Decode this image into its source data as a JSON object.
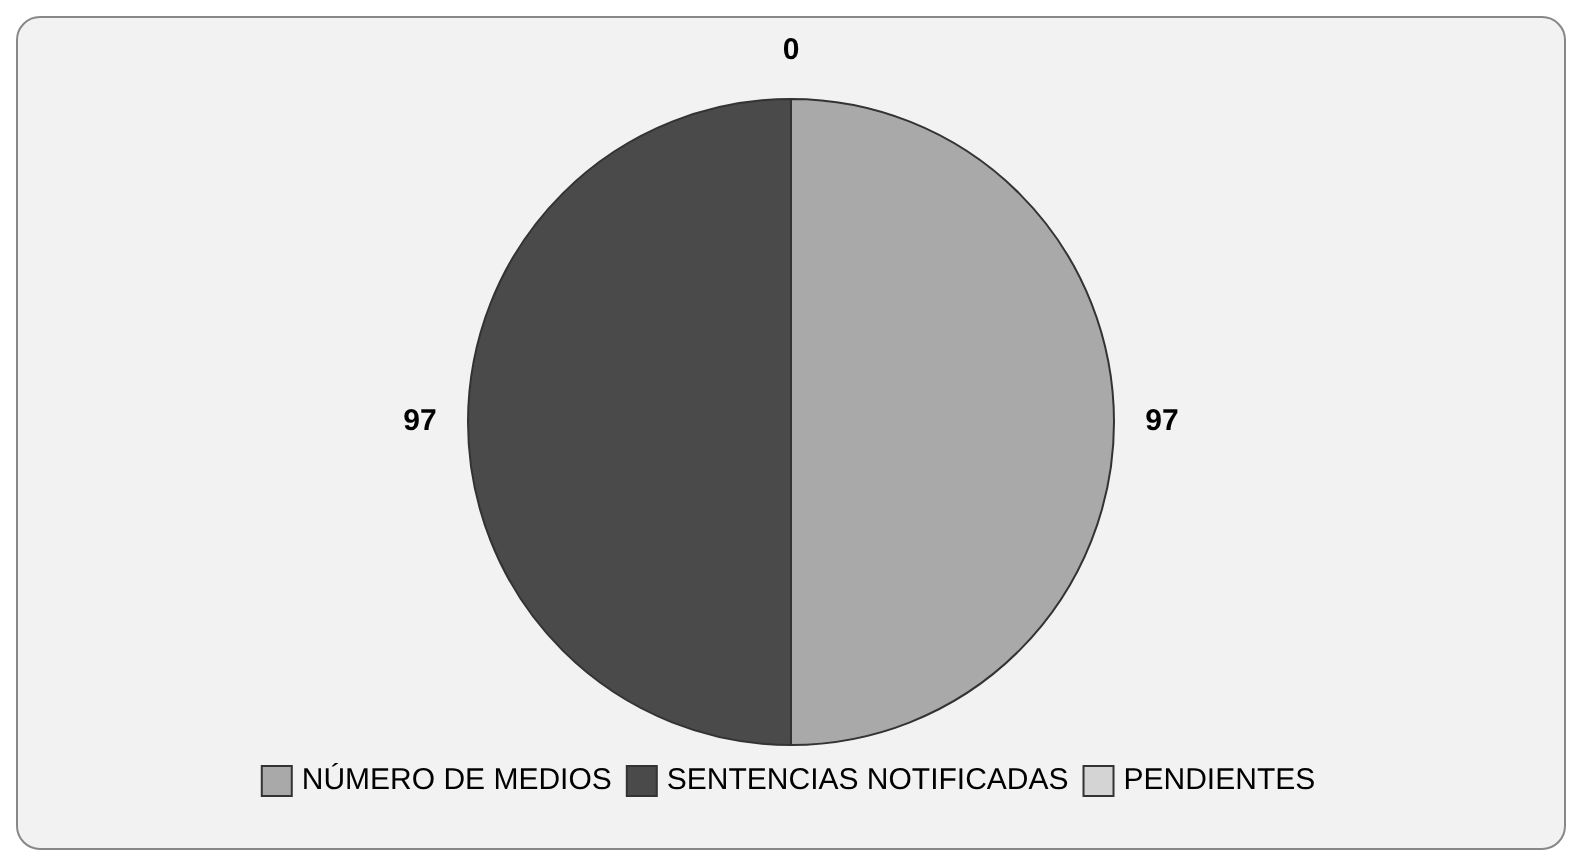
{
  "chart_data": {
    "type": "pie",
    "categories": [
      "NÚMERO DE MEDIOS",
      "SENTENCIAS NOTIFICADAS",
      "PENDIENTES"
    ],
    "values": [
      97,
      97,
      0
    ],
    "colors": [
      "#a9a9a9",
      "#4a4a4a",
      "#d4d4d4"
    ],
    "value_labels": [
      "97",
      "97",
      "0"
    ],
    "legend": "bottom"
  }
}
